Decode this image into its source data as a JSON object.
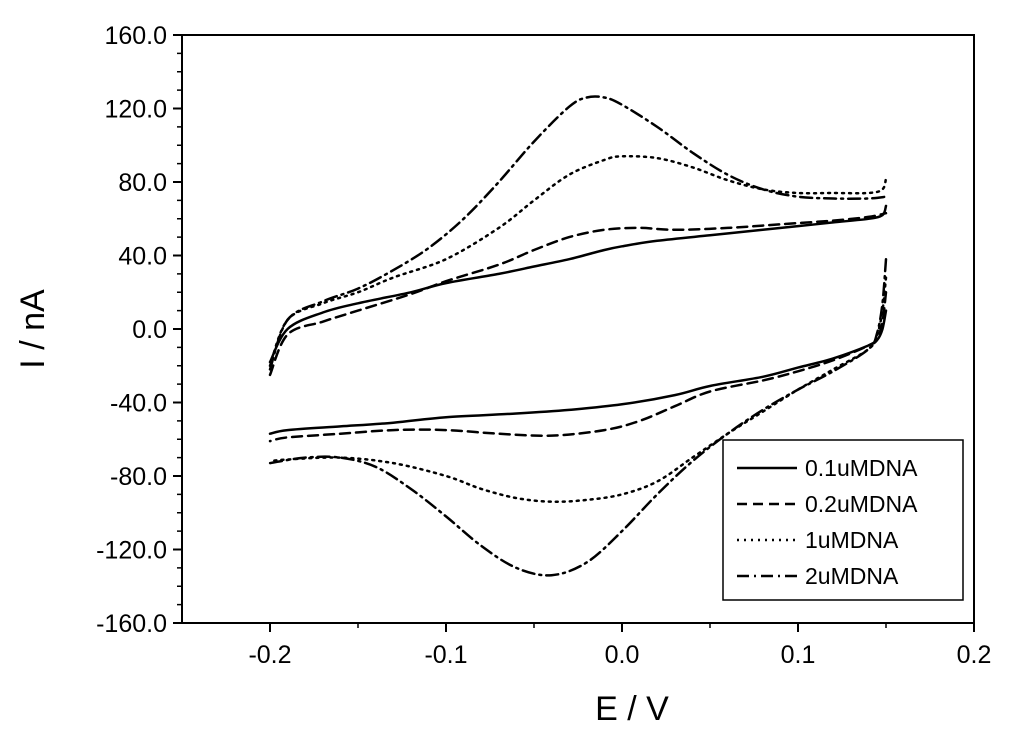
{
  "chart_data": {
    "type": "line",
    "xlabel": "E / V",
    "ylabel": "I / nA",
    "xlim": [
      -0.25,
      0.2
    ],
    "ylim": [
      -160,
      160
    ],
    "x_ticks": [
      -0.2,
      -0.1,
      0.0,
      0.1,
      0.2
    ],
    "x_tick_labels": [
      "-0.2",
      "-0.1",
      "0.0",
      "0.1",
      "0.2"
    ],
    "y_ticks": [
      -160,
      -120,
      -80,
      -40,
      0,
      40,
      80,
      120,
      160
    ],
    "y_tick_labels": [
      "-160.0",
      "-120.0",
      "-80.0",
      "-40.0",
      "0.0",
      "40.0",
      "80.0",
      "120.0",
      "160.0"
    ],
    "grid": false,
    "legend_position": "bottom-right",
    "series": [
      {
        "name": "0.1uMDNA",
        "style": "solid",
        "color": "#000000",
        "forward": {
          "x": [
            -0.2,
            -0.19,
            -0.17,
            -0.15,
            -0.12,
            -0.1,
            -0.07,
            -0.05,
            -0.03,
            -0.01,
            0.0,
            0.02,
            0.05,
            0.08,
            0.1,
            0.12,
            0.14,
            0.148,
            0.15
          ],
          "y": [
            -18,
            0,
            9,
            14,
            20,
            25,
            30,
            34,
            38,
            43,
            45,
            48,
            51,
            54,
            56,
            58,
            60,
            62,
            67
          ]
        },
        "reverse": {
          "x": [
            0.15,
            0.148,
            0.145,
            0.14,
            0.12,
            0.1,
            0.08,
            0.05,
            0.03,
            0.0,
            -0.03,
            -0.06,
            -0.1,
            -0.13,
            -0.16,
            -0.19,
            -0.2
          ],
          "y": [
            10,
            0,
            -6,
            -9,
            -16,
            -21,
            -26,
            -31,
            -36,
            -41,
            -44,
            -46,
            -48,
            -51,
            -53,
            -55,
            -57
          ]
        }
      },
      {
        "name": "0.2uMDNA",
        "style": "dashed",
        "color": "#000000",
        "forward": {
          "x": [
            -0.2,
            -0.19,
            -0.17,
            -0.15,
            -0.12,
            -0.1,
            -0.07,
            -0.05,
            -0.03,
            -0.01,
            0.01,
            0.03,
            0.06,
            0.09,
            0.12,
            0.14,
            0.15
          ],
          "y": [
            -25,
            -3,
            4,
            10,
            19,
            26,
            35,
            43,
            50,
            54,
            55,
            54,
            55,
            57,
            59,
            61,
            63
          ]
        },
        "reverse": {
          "x": [
            0.15,
            0.148,
            0.145,
            0.14,
            0.12,
            0.1,
            0.08,
            0.05,
            0.03,
            0.01,
            -0.01,
            -0.04,
            -0.07,
            -0.1,
            -0.13,
            -0.16,
            -0.19,
            -0.2
          ],
          "y": [
            20,
            4,
            -5,
            -9,
            -17,
            -23,
            -28,
            -34,
            -42,
            -50,
            -55,
            -58,
            -57,
            -55,
            -55,
            -57,
            -59,
            -61
          ]
        }
      },
      {
        "name": "1uMDNA",
        "style": "dotted",
        "color": "#000000",
        "forward": {
          "x": [
            -0.2,
            -0.19,
            -0.17,
            -0.15,
            -0.13,
            -0.1,
            -0.07,
            -0.05,
            -0.03,
            -0.01,
            0.0,
            0.02,
            0.04,
            0.06,
            0.08,
            0.1,
            0.12,
            0.14,
            0.148,
            0.15
          ],
          "y": [
            -20,
            5,
            14,
            20,
            28,
            38,
            55,
            70,
            84,
            92,
            94,
            93,
            88,
            81,
            76,
            74,
            74,
            74,
            76,
            82
          ]
        },
        "reverse": {
          "x": [
            0.15,
            0.148,
            0.145,
            0.14,
            0.12,
            0.1,
            0.08,
            0.06,
            0.04,
            0.02,
            0.0,
            -0.02,
            -0.04,
            -0.06,
            -0.08,
            -0.1,
            -0.13,
            -0.16,
            -0.19,
            -0.2
          ],
          "y": [
            28,
            10,
            -3,
            -11,
            -22,
            -33,
            -45,
            -57,
            -70,
            -83,
            -90,
            -93,
            -94,
            -92,
            -87,
            -80,
            -73,
            -70,
            -71,
            -72
          ]
        }
      },
      {
        "name": "2uMDNA",
        "style": "dashdot",
        "color": "#000000",
        "forward": {
          "x": [
            -0.2,
            -0.19,
            -0.17,
            -0.15,
            -0.13,
            -0.11,
            -0.09,
            -0.07,
            -0.05,
            -0.03,
            -0.02,
            -0.01,
            0.0,
            0.02,
            0.04,
            0.06,
            0.08,
            0.1,
            0.12,
            0.14,
            0.15
          ],
          "y": [
            -22,
            5,
            15,
            22,
            32,
            44,
            60,
            80,
            102,
            121,
            126,
            126,
            122,
            110,
            96,
            84,
            76,
            72,
            71,
            71,
            72
          ]
        },
        "reverse": {
          "x": [
            0.15,
            0.148,
            0.145,
            0.14,
            0.12,
            0.1,
            0.08,
            0.06,
            0.04,
            0.02,
            0.0,
            -0.02,
            -0.04,
            -0.06,
            -0.08,
            -0.1,
            -0.12,
            -0.14,
            -0.16,
            -0.18,
            -0.2
          ],
          "y": [
            38,
            14,
            -2,
            -11,
            -23,
            -33,
            -44,
            -57,
            -72,
            -90,
            -110,
            -127,
            -134,
            -130,
            -118,
            -102,
            -87,
            -75,
            -70,
            -70,
            -73
          ]
        }
      }
    ]
  }
}
